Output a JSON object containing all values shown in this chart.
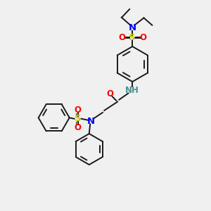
{
  "bg_color": "#f0f0f0",
  "line_color": "#1a1a1a",
  "N_color": "#0000ff",
  "O_color": "#ff0000",
  "S_color": "#cccc00",
  "NH_color": "#4a9090",
  "figsize": [
    3.0,
    3.0
  ],
  "dpi": 100,
  "xlim": [
    0,
    10
  ],
  "ylim": [
    0,
    10
  ]
}
